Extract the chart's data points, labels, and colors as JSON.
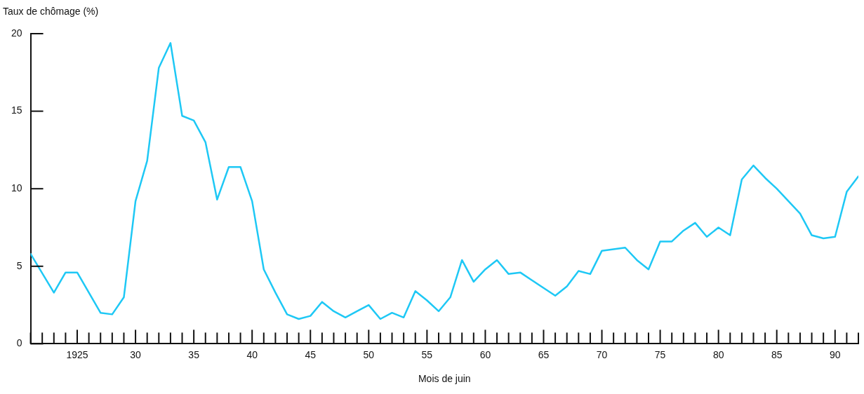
{
  "chart_data": {
    "type": "line",
    "ylabel": "Taux de chômage (%)",
    "xlabel": "Mois de juin",
    "x": [
      1921,
      1923,
      1924,
      1925,
      1927,
      1928,
      1929,
      1930,
      1931,
      1932,
      1933,
      1934,
      1935,
      1936,
      1937,
      1938,
      1939,
      1940,
      1941,
      1942,
      1943,
      1944,
      1945,
      1946,
      1947,
      1948,
      1949,
      1950,
      1951,
      1952,
      1953,
      1954,
      1955,
      1956,
      1957,
      1958,
      1959,
      1960,
      1961,
      1962,
      1963,
      1964,
      1965,
      1966,
      1967,
      1968,
      1969,
      1970,
      1971,
      1972,
      1973,
      1974,
      1975,
      1976,
      1977,
      1978,
      1979,
      1980,
      1981,
      1982,
      1983,
      1984,
      1985,
      1986,
      1987,
      1988,
      1989,
      1990,
      1991,
      1992
    ],
    "series": [
      {
        "color": "#1ec8f5",
        "values": [
          5.8,
          3.3,
          4.6,
          4.6,
          2.0,
          1.9,
          3.0,
          9.2,
          11.8,
          17.8,
          19.4,
          14.7,
          14.4,
          13.0,
          9.3,
          11.4,
          11.4,
          9.2,
          4.8,
          3.3,
          1.9,
          1.6,
          1.8,
          2.7,
          2.1,
          1.7,
          2.1,
          2.5,
          1.6,
          2.0,
          1.7,
          3.4,
          2.8,
          2.1,
          3.0,
          5.4,
          4.0,
          4.8,
          5.4,
          4.5,
          4.6,
          4.1,
          3.6,
          3.1,
          3.7,
          4.7,
          4.5,
          6.0,
          6.1,
          6.2,
          5.4,
          4.8,
          6.6,
          6.6,
          7.3,
          7.8,
          6.9,
          7.5,
          7.0,
          10.6,
          11.5,
          10.7,
          10.0,
          9.2,
          8.4,
          7.0,
          6.8,
          6.9,
          9.8,
          10.8
        ]
      }
    ],
    "xlim": [
      1921,
      1992
    ],
    "xticks": [
      {
        "value": 1921,
        "label": null
      },
      {
        "value": 1922,
        "label": null
      },
      {
        "value": 1923,
        "label": null
      },
      {
        "value": 1924,
        "label": null
      },
      {
        "value": 1925,
        "label": "1925"
      },
      {
        "value": 1926,
        "label": null
      },
      {
        "value": 1927,
        "label": null
      },
      {
        "value": 1928,
        "label": null
      },
      {
        "value": 1929,
        "label": null
      },
      {
        "value": 1930,
        "label": "30"
      },
      {
        "value": 1931,
        "label": null
      },
      {
        "value": 1932,
        "label": null
      },
      {
        "value": 1933,
        "label": null
      },
      {
        "value": 1934,
        "label": null
      },
      {
        "value": 1935,
        "label": "35"
      },
      {
        "value": 1936,
        "label": null
      },
      {
        "value": 1937,
        "label": null
      },
      {
        "value": 1938,
        "label": null
      },
      {
        "value": 1939,
        "label": null
      },
      {
        "value": 1940,
        "label": "40"
      },
      {
        "value": 1941,
        "label": null
      },
      {
        "value": 1942,
        "label": null
      },
      {
        "value": 1943,
        "label": null
      },
      {
        "value": 1944,
        "label": null
      },
      {
        "value": 1945,
        "label": "45"
      },
      {
        "value": 1946,
        "label": null
      },
      {
        "value": 1947,
        "label": null
      },
      {
        "value": 1948,
        "label": null
      },
      {
        "value": 1949,
        "label": null
      },
      {
        "value": 1950,
        "label": "50"
      },
      {
        "value": 1951,
        "label": null
      },
      {
        "value": 1952,
        "label": null
      },
      {
        "value": 1953,
        "label": null
      },
      {
        "value": 1954,
        "label": null
      },
      {
        "value": 1955,
        "label": "55"
      },
      {
        "value": 1956,
        "label": null
      },
      {
        "value": 1957,
        "label": null
      },
      {
        "value": 1958,
        "label": null
      },
      {
        "value": 1959,
        "label": null
      },
      {
        "value": 1960,
        "label": "60"
      },
      {
        "value": 1961,
        "label": null
      },
      {
        "value": 1962,
        "label": null
      },
      {
        "value": 1963,
        "label": null
      },
      {
        "value": 1964,
        "label": null
      },
      {
        "value": 1965,
        "label": "65"
      },
      {
        "value": 1966,
        "label": null
      },
      {
        "value": 1967,
        "label": null
      },
      {
        "value": 1968,
        "label": null
      },
      {
        "value": 1969,
        "label": null
      },
      {
        "value": 1970,
        "label": "70"
      },
      {
        "value": 1971,
        "label": null
      },
      {
        "value": 1972,
        "label": null
      },
      {
        "value": 1973,
        "label": null
      },
      {
        "value": 1974,
        "label": null
      },
      {
        "value": 1975,
        "label": "75"
      },
      {
        "value": 1976,
        "label": null
      },
      {
        "value": 1977,
        "label": null
      },
      {
        "value": 1978,
        "label": null
      },
      {
        "value": 1979,
        "label": null
      },
      {
        "value": 1980,
        "label": "80"
      },
      {
        "value": 1981,
        "label": null
      },
      {
        "value": 1982,
        "label": null
      },
      {
        "value": 1983,
        "label": null
      },
      {
        "value": 1984,
        "label": null
      },
      {
        "value": 1985,
        "label": "85"
      },
      {
        "value": 1986,
        "label": null
      },
      {
        "value": 1987,
        "label": null
      },
      {
        "value": 1988,
        "label": null
      },
      {
        "value": 1989,
        "label": null
      },
      {
        "value": 1990,
        "label": "90"
      },
      {
        "value": 1991,
        "label": null
      },
      {
        "value": 1992,
        "label": null
      }
    ],
    "ylim": [
      0,
      20
    ],
    "yticks": [
      0,
      5,
      10,
      15,
      20
    ],
    "marker": "none",
    "line_style": "solid",
    "legend": false,
    "grid": false
  }
}
